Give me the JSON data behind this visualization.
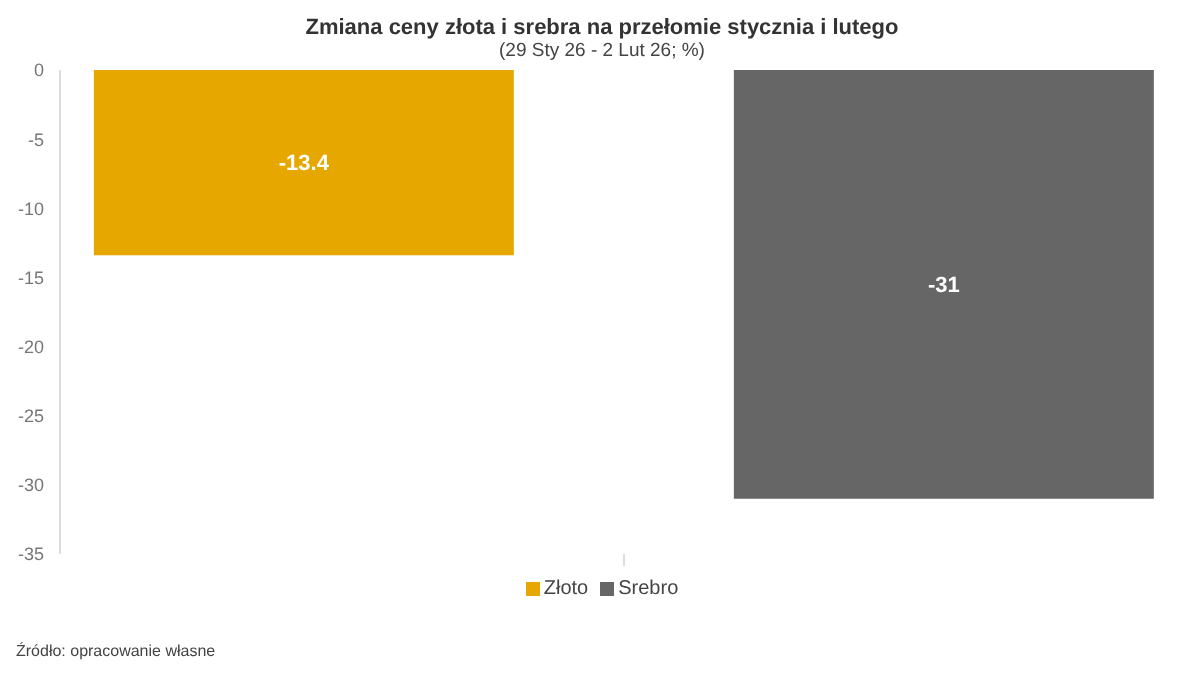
{
  "chart_data": {
    "type": "bar",
    "title": "Zmiana ceny złota i srebra na przełomie stycznia i lutego",
    "subtitle": "(29 Sty 26 - 2 Lut 26; %)",
    "categories": [
      null
    ],
    "series": [
      {
        "name": "Złoto",
        "color": "#e6a800",
        "values": [
          -13.4
        ]
      },
      {
        "name": "Srebro",
        "color": "#666666",
        "values": [
          -31
        ]
      }
    ],
    "ylim": [
      -35,
      0
    ],
    "yticks": [
      0,
      -5,
      -10,
      -15,
      -20,
      -25,
      -30,
      -35
    ],
    "data_labels": true,
    "legend": "bottom",
    "grid": false,
    "annotations": [
      "Źródło: opracowanie własne"
    ]
  }
}
